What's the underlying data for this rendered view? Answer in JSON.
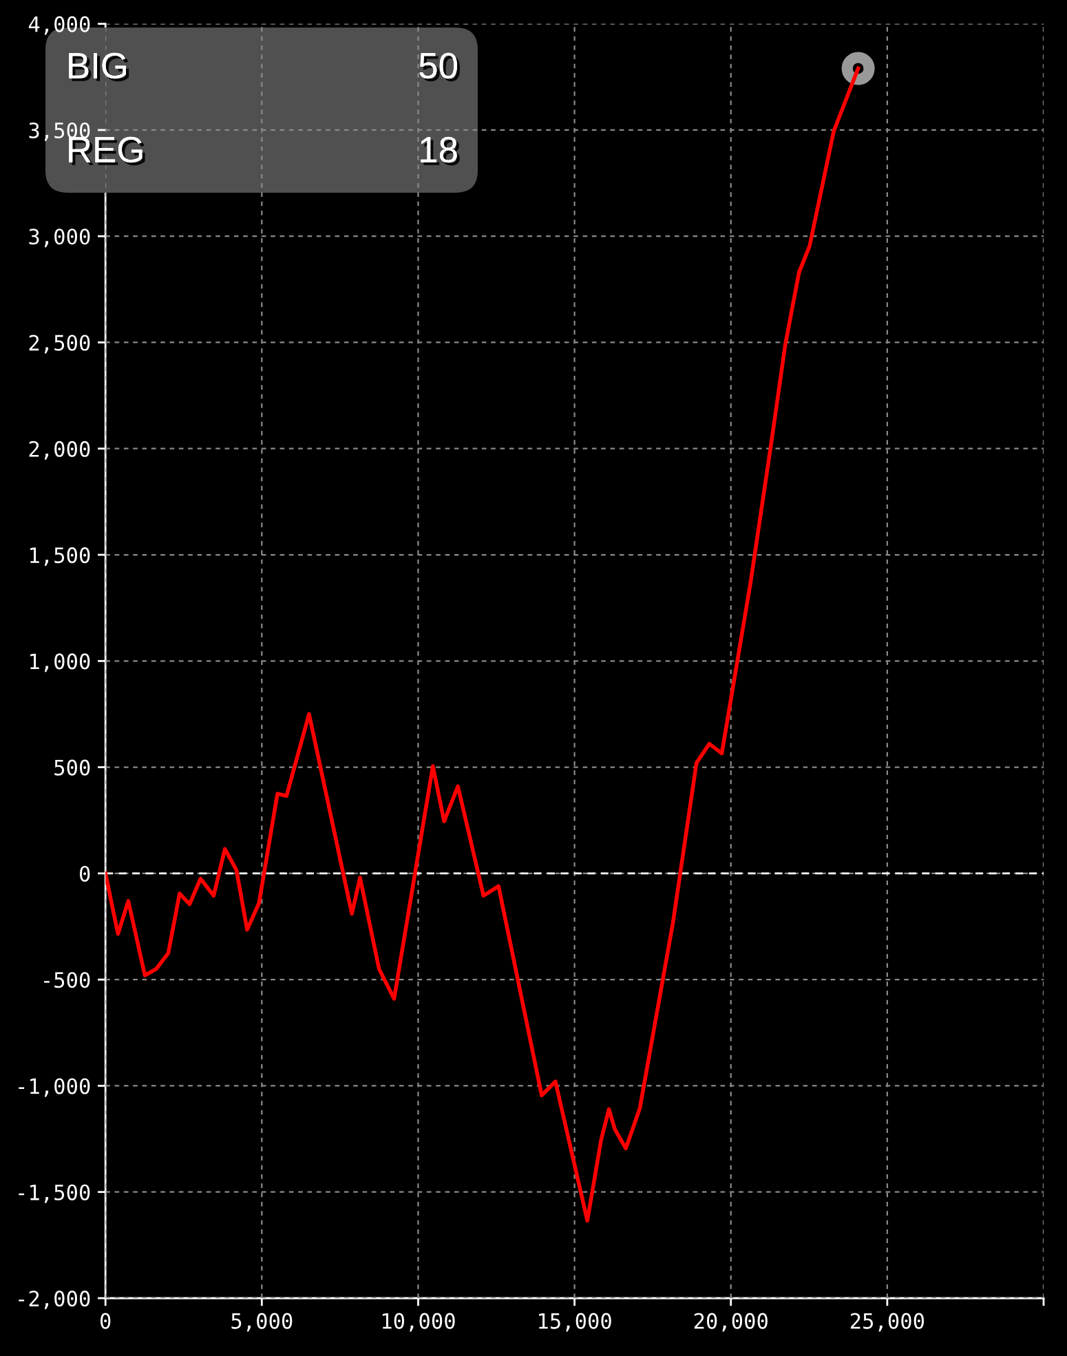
{
  "chart_data": {
    "type": "line",
    "annotations": [
      "BIG",
      "50",
      "REG",
      "18"
    ],
    "series": [
      {
        "color": "#ff0000",
        "x": [
          0,
          400,
          730,
          1260,
          1620,
          2010,
          2370,
          2690,
          3040,
          3460,
          3820,
          4190,
          4530,
          4910,
          5500,
          5790,
          6510,
          7880,
          8140,
          8750,
          9230,
          10470,
          10830,
          11270,
          12090,
          12570,
          13950,
          14390,
          15410,
          15850,
          16100,
          16290,
          16640,
          17090,
          18150,
          18900,
          19310,
          19710,
          20630,
          21300,
          21740,
          22180,
          22520,
          23290,
          24070
        ],
        "values": [
          0,
          -285,
          -130,
          -480,
          -450,
          -375,
          -95,
          -145,
          -25,
          -105,
          115,
          15,
          -265,
          -140,
          375,
          365,
          750,
          -190,
          -20,
          -450,
          -590,
          505,
          245,
          410,
          -105,
          -60,
          -1045,
          -980,
          -1635,
          -1255,
          -1110,
          -1205,
          -1295,
          -1105,
          -230,
          520,
          610,
          565,
          1370,
          2035,
          2490,
          2830,
          2955,
          3495,
          3790
        ]
      },
      {
        "type": "scatter",
        "color": "#b4b4b4",
        "marker": "circle",
        "x": [
          24070
        ],
        "values": [
          3790
        ]
      }
    ],
    "xlim": [
      0,
      30000
    ],
    "xticks": [
      0,
      {
        "value": 5000,
        "label": "5,000"
      },
      {
        "value": 10000,
        "label": "10,000"
      },
      {
        "value": 15000,
        "label": "15,000"
      },
      {
        "value": 20000,
        "label": "20,000"
      },
      {
        "value": 25000,
        "label": "25,000"
      },
      {
        "value": 30000,
        "label": null
      }
    ],
    "ylim": [
      -2000,
      4000
    ],
    "yticks": [
      {
        "value": -2000,
        "label": "-2,000"
      },
      {
        "value": -1500,
        "label": "-1,500"
      },
      {
        "value": -1000,
        "label": "-1,000"
      },
      -500,
      0,
      500,
      {
        "value": 1000,
        "label": "1,000"
      },
      {
        "value": 1500,
        "label": "1,500"
      },
      {
        "value": 2000,
        "label": "2,000"
      },
      {
        "value": 2500,
        "label": "2,500"
      },
      {
        "value": 3000,
        "label": "3,000"
      },
      {
        "value": 3500,
        "label": "3,500"
      },
      {
        "value": 4000,
        "label": "4,000"
      }
    ],
    "ref_lines": [
      {
        "axis": "y",
        "value": 0,
        "color": "#ffffff",
        "line_style": "dashed"
      }
    ],
    "grid": true
  }
}
